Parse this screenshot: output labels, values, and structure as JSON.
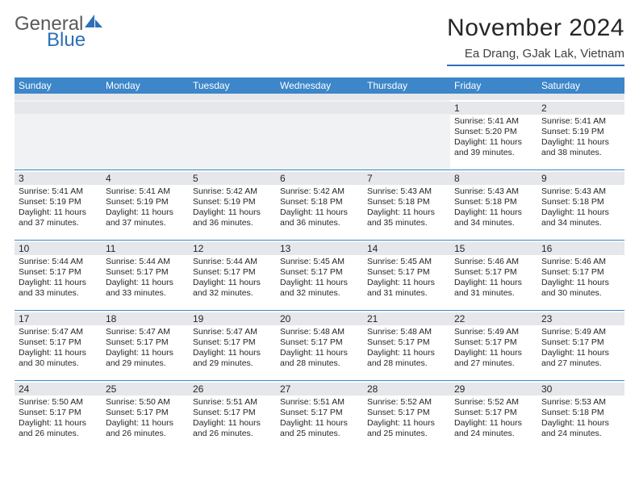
{
  "colors": {
    "header_bg": "#3c86c9",
    "header_text": "#ffffff",
    "border": "#3c86c9",
    "daynum_bg": "#e5e7ea",
    "empty_bg": "#f1f2f4",
    "text": "#262626",
    "logo_gray": "#5a5a5a",
    "logo_blue": "#2d6fb8"
  },
  "logo": {
    "word1": "General",
    "word2": "Blue"
  },
  "title": "November 2024",
  "location": "Ea Drang, GJak Lak, Vietnam",
  "dayNames": [
    "Sunday",
    "Monday",
    "Tuesday",
    "Wednesday",
    "Thursday",
    "Friday",
    "Saturday"
  ],
  "weeks": [
    [
      {
        "empty": true
      },
      {
        "empty": true
      },
      {
        "empty": true
      },
      {
        "empty": true
      },
      {
        "empty": true
      },
      {
        "day": "1",
        "sunrise": "Sunrise: 5:41 AM",
        "sunset": "Sunset: 5:20 PM",
        "daylight": "Daylight: 11 hours and 39 minutes."
      },
      {
        "day": "2",
        "sunrise": "Sunrise: 5:41 AM",
        "sunset": "Sunset: 5:19 PM",
        "daylight": "Daylight: 11 hours and 38 minutes."
      }
    ],
    [
      {
        "day": "3",
        "sunrise": "Sunrise: 5:41 AM",
        "sunset": "Sunset: 5:19 PM",
        "daylight": "Daylight: 11 hours and 37 minutes."
      },
      {
        "day": "4",
        "sunrise": "Sunrise: 5:41 AM",
        "sunset": "Sunset: 5:19 PM",
        "daylight": "Daylight: 11 hours and 37 minutes."
      },
      {
        "day": "5",
        "sunrise": "Sunrise: 5:42 AM",
        "sunset": "Sunset: 5:19 PM",
        "daylight": "Daylight: 11 hours and 36 minutes."
      },
      {
        "day": "6",
        "sunrise": "Sunrise: 5:42 AM",
        "sunset": "Sunset: 5:18 PM",
        "daylight": "Daylight: 11 hours and 36 minutes."
      },
      {
        "day": "7",
        "sunrise": "Sunrise: 5:43 AM",
        "sunset": "Sunset: 5:18 PM",
        "daylight": "Daylight: 11 hours and 35 minutes."
      },
      {
        "day": "8",
        "sunrise": "Sunrise: 5:43 AM",
        "sunset": "Sunset: 5:18 PM",
        "daylight": "Daylight: 11 hours and 34 minutes."
      },
      {
        "day": "9",
        "sunrise": "Sunrise: 5:43 AM",
        "sunset": "Sunset: 5:18 PM",
        "daylight": "Daylight: 11 hours and 34 minutes."
      }
    ],
    [
      {
        "day": "10",
        "sunrise": "Sunrise: 5:44 AM",
        "sunset": "Sunset: 5:17 PM",
        "daylight": "Daylight: 11 hours and 33 minutes."
      },
      {
        "day": "11",
        "sunrise": "Sunrise: 5:44 AM",
        "sunset": "Sunset: 5:17 PM",
        "daylight": "Daylight: 11 hours and 33 minutes."
      },
      {
        "day": "12",
        "sunrise": "Sunrise: 5:44 AM",
        "sunset": "Sunset: 5:17 PM",
        "daylight": "Daylight: 11 hours and 32 minutes."
      },
      {
        "day": "13",
        "sunrise": "Sunrise: 5:45 AM",
        "sunset": "Sunset: 5:17 PM",
        "daylight": "Daylight: 11 hours and 32 minutes."
      },
      {
        "day": "14",
        "sunrise": "Sunrise: 5:45 AM",
        "sunset": "Sunset: 5:17 PM",
        "daylight": "Daylight: 11 hours and 31 minutes."
      },
      {
        "day": "15",
        "sunrise": "Sunrise: 5:46 AM",
        "sunset": "Sunset: 5:17 PM",
        "daylight": "Daylight: 11 hours and 31 minutes."
      },
      {
        "day": "16",
        "sunrise": "Sunrise: 5:46 AM",
        "sunset": "Sunset: 5:17 PM",
        "daylight": "Daylight: 11 hours and 30 minutes."
      }
    ],
    [
      {
        "day": "17",
        "sunrise": "Sunrise: 5:47 AM",
        "sunset": "Sunset: 5:17 PM",
        "daylight": "Daylight: 11 hours and 30 minutes."
      },
      {
        "day": "18",
        "sunrise": "Sunrise: 5:47 AM",
        "sunset": "Sunset: 5:17 PM",
        "daylight": "Daylight: 11 hours and 29 minutes."
      },
      {
        "day": "19",
        "sunrise": "Sunrise: 5:47 AM",
        "sunset": "Sunset: 5:17 PM",
        "daylight": "Daylight: 11 hours and 29 minutes."
      },
      {
        "day": "20",
        "sunrise": "Sunrise: 5:48 AM",
        "sunset": "Sunset: 5:17 PM",
        "daylight": "Daylight: 11 hours and 28 minutes."
      },
      {
        "day": "21",
        "sunrise": "Sunrise: 5:48 AM",
        "sunset": "Sunset: 5:17 PM",
        "daylight": "Daylight: 11 hours and 28 minutes."
      },
      {
        "day": "22",
        "sunrise": "Sunrise: 5:49 AM",
        "sunset": "Sunset: 5:17 PM",
        "daylight": "Daylight: 11 hours and 27 minutes."
      },
      {
        "day": "23",
        "sunrise": "Sunrise: 5:49 AM",
        "sunset": "Sunset: 5:17 PM",
        "daylight": "Daylight: 11 hours and 27 minutes."
      }
    ],
    [
      {
        "day": "24",
        "sunrise": "Sunrise: 5:50 AM",
        "sunset": "Sunset: 5:17 PM",
        "daylight": "Daylight: 11 hours and 26 minutes."
      },
      {
        "day": "25",
        "sunrise": "Sunrise: 5:50 AM",
        "sunset": "Sunset: 5:17 PM",
        "daylight": "Daylight: 11 hours and 26 minutes."
      },
      {
        "day": "26",
        "sunrise": "Sunrise: 5:51 AM",
        "sunset": "Sunset: 5:17 PM",
        "daylight": "Daylight: 11 hours and 26 minutes."
      },
      {
        "day": "27",
        "sunrise": "Sunrise: 5:51 AM",
        "sunset": "Sunset: 5:17 PM",
        "daylight": "Daylight: 11 hours and 25 minutes."
      },
      {
        "day": "28",
        "sunrise": "Sunrise: 5:52 AM",
        "sunset": "Sunset: 5:17 PM",
        "daylight": "Daylight: 11 hours and 25 minutes."
      },
      {
        "day": "29",
        "sunrise": "Sunrise: 5:52 AM",
        "sunset": "Sunset: 5:17 PM",
        "daylight": "Daylight: 11 hours and 24 minutes."
      },
      {
        "day": "30",
        "sunrise": "Sunrise: 5:53 AM",
        "sunset": "Sunset: 5:18 PM",
        "daylight": "Daylight: 11 hours and 24 minutes."
      }
    ]
  ]
}
